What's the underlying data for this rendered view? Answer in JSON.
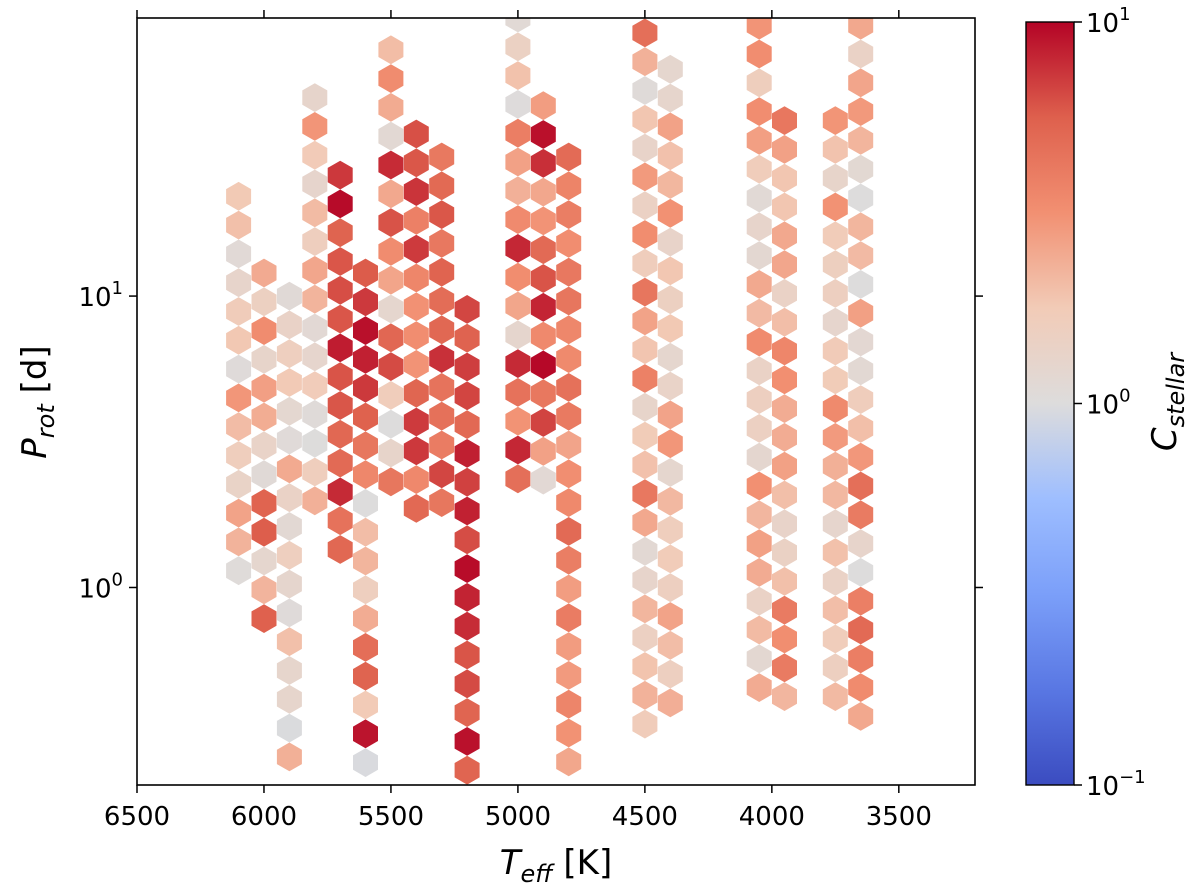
{
  "chart_data": {
    "type": "hexbin",
    "xlabel": {
      "main": "T",
      "sub": "eff",
      "unit": " [K]"
    },
    "ylabel": {
      "main": "P",
      "sub": "rot",
      "unit": " [d]"
    },
    "colorbar_label": {
      "main": "C",
      "sub": "stellar"
    },
    "xlim": [
      6500,
      3200
    ],
    "ylim": [
      0.21,
      90
    ],
    "yscale": "log",
    "x_ticks": [
      6500,
      6000,
      5500,
      5000,
      4500,
      4000,
      3500
    ],
    "x_tick_labels": [
      "6500",
      "6000",
      "5500",
      "5000",
      "4500",
      "4000",
      "3500"
    ],
    "y_ticks": [
      1,
      10
    ],
    "y_tick_labels": [
      {
        "base": "10",
        "exp": "0"
      },
      {
        "base": "10",
        "exp": "1"
      }
    ],
    "colorbar": {
      "scale": "log",
      "range": [
        0.1,
        10
      ],
      "tick_labels": [
        {
          "value": 10,
          "base": "10",
          "exp": "1"
        },
        {
          "value": 1,
          "base": "10",
          "exp": "0"
        },
        {
          "value": 0.1,
          "base": "10",
          "exp": "−1"
        }
      ],
      "colormap": "coolwarm"
    },
    "columns": [
      {
        "teff": 6100,
        "p_min": 1.05,
        "p_max": 22,
        "c_min": 0.95,
        "c_max": 3.5
      },
      {
        "teff": 6000,
        "p_min": 0.65,
        "p_max": 12,
        "c_min": 1.0,
        "c_max": 6.0
      },
      {
        "teff": 5900,
        "p_min": 0.22,
        "p_max": 10,
        "c_min": 0.9,
        "c_max": 2.5
      },
      {
        "teff": 5800,
        "p_min": 1.6,
        "p_max": 48,
        "c_min": 0.95,
        "c_max": 3.5
      },
      {
        "teff": 5700,
        "p_min": 1.1,
        "p_max": 26,
        "c_min": 4.0,
        "c_max": 10.0
      },
      {
        "teff": 5600,
        "p_min": 0.22,
        "p_max": 12,
        "c_min": 0.95,
        "c_max": 10.0
      },
      {
        "teff": 5500,
        "p_min": 2.0,
        "p_max": 70,
        "c_min": 0.95,
        "c_max": 8.0
      },
      {
        "teff": 5400,
        "p_min": 1.7,
        "p_max": 36,
        "c_min": 3.0,
        "c_max": 8.5
      },
      {
        "teff": 5300,
        "p_min": 1.9,
        "p_max": 30,
        "c_min": 4.0,
        "c_max": 9.0
      },
      {
        "teff": 5200,
        "p_min": 0.22,
        "p_max": 9,
        "c_min": 5.0,
        "c_max": 10.0
      },
      {
        "teff": 5000,
        "p_min": 2.0,
        "p_max": 90,
        "c_min": 0.95,
        "c_max": 10.0
      },
      {
        "teff": 4900,
        "p_min": 1.9,
        "p_max": 45,
        "c_min": 0.95,
        "c_max": 10.0
      },
      {
        "teff": 4800,
        "p_min": 0.22,
        "p_max": 30,
        "c_min": 2.5,
        "c_max": 5.0
      },
      {
        "teff": 4500,
        "p_min": 0.3,
        "p_max": 80,
        "c_min": 1.0,
        "c_max": 5.0
      },
      {
        "teff": 4400,
        "p_min": 0.35,
        "p_max": 60,
        "c_min": 1.2,
        "c_max": 3.5
      },
      {
        "teff": 4050,
        "p_min": 0.4,
        "p_max": 85,
        "c_min": 1.0,
        "c_max": 3.5
      },
      {
        "teff": 3950,
        "p_min": 0.35,
        "p_max": 40,
        "c_min": 1.2,
        "c_max": 4.5
      },
      {
        "teff": 3750,
        "p_min": 0.4,
        "p_max": 40,
        "c_min": 1.2,
        "c_max": 3.5
      },
      {
        "teff": 3650,
        "p_min": 0.35,
        "p_max": 85,
        "c_min": 1.0,
        "c_max": 5.0
      }
    ]
  }
}
